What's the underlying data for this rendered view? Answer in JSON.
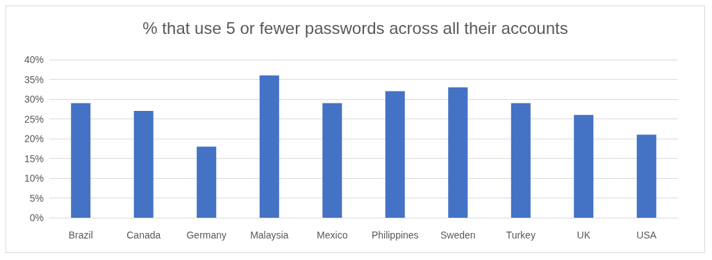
{
  "chart_data": {
    "type": "bar",
    "title": "% that use 5 or fewer passwords across all their accounts",
    "categories": [
      "Brazil",
      "Canada",
      "Germany",
      "Malaysia",
      "Mexico",
      "Philippines",
      "Sweden",
      "Turkey",
      "UK",
      "USA"
    ],
    "values": [
      29,
      27,
      18,
      36,
      29,
      32,
      33,
      29,
      26,
      21
    ],
    "color": "#4472c4",
    "ylim": [
      0,
      40
    ],
    "yticks": [
      {
        "value": 0,
        "label": "0%"
      },
      {
        "value": 5,
        "label": "5%"
      },
      {
        "value": 10,
        "label": "10%"
      },
      {
        "value": 15,
        "label": "15%"
      },
      {
        "value": 20,
        "label": "20%"
      },
      {
        "value": 25,
        "label": "25%"
      },
      {
        "value": 30,
        "label": "30%"
      },
      {
        "value": 35,
        "label": "35%"
      },
      {
        "value": 40,
        "label": "40%"
      }
    ],
    "grid": "y"
  }
}
